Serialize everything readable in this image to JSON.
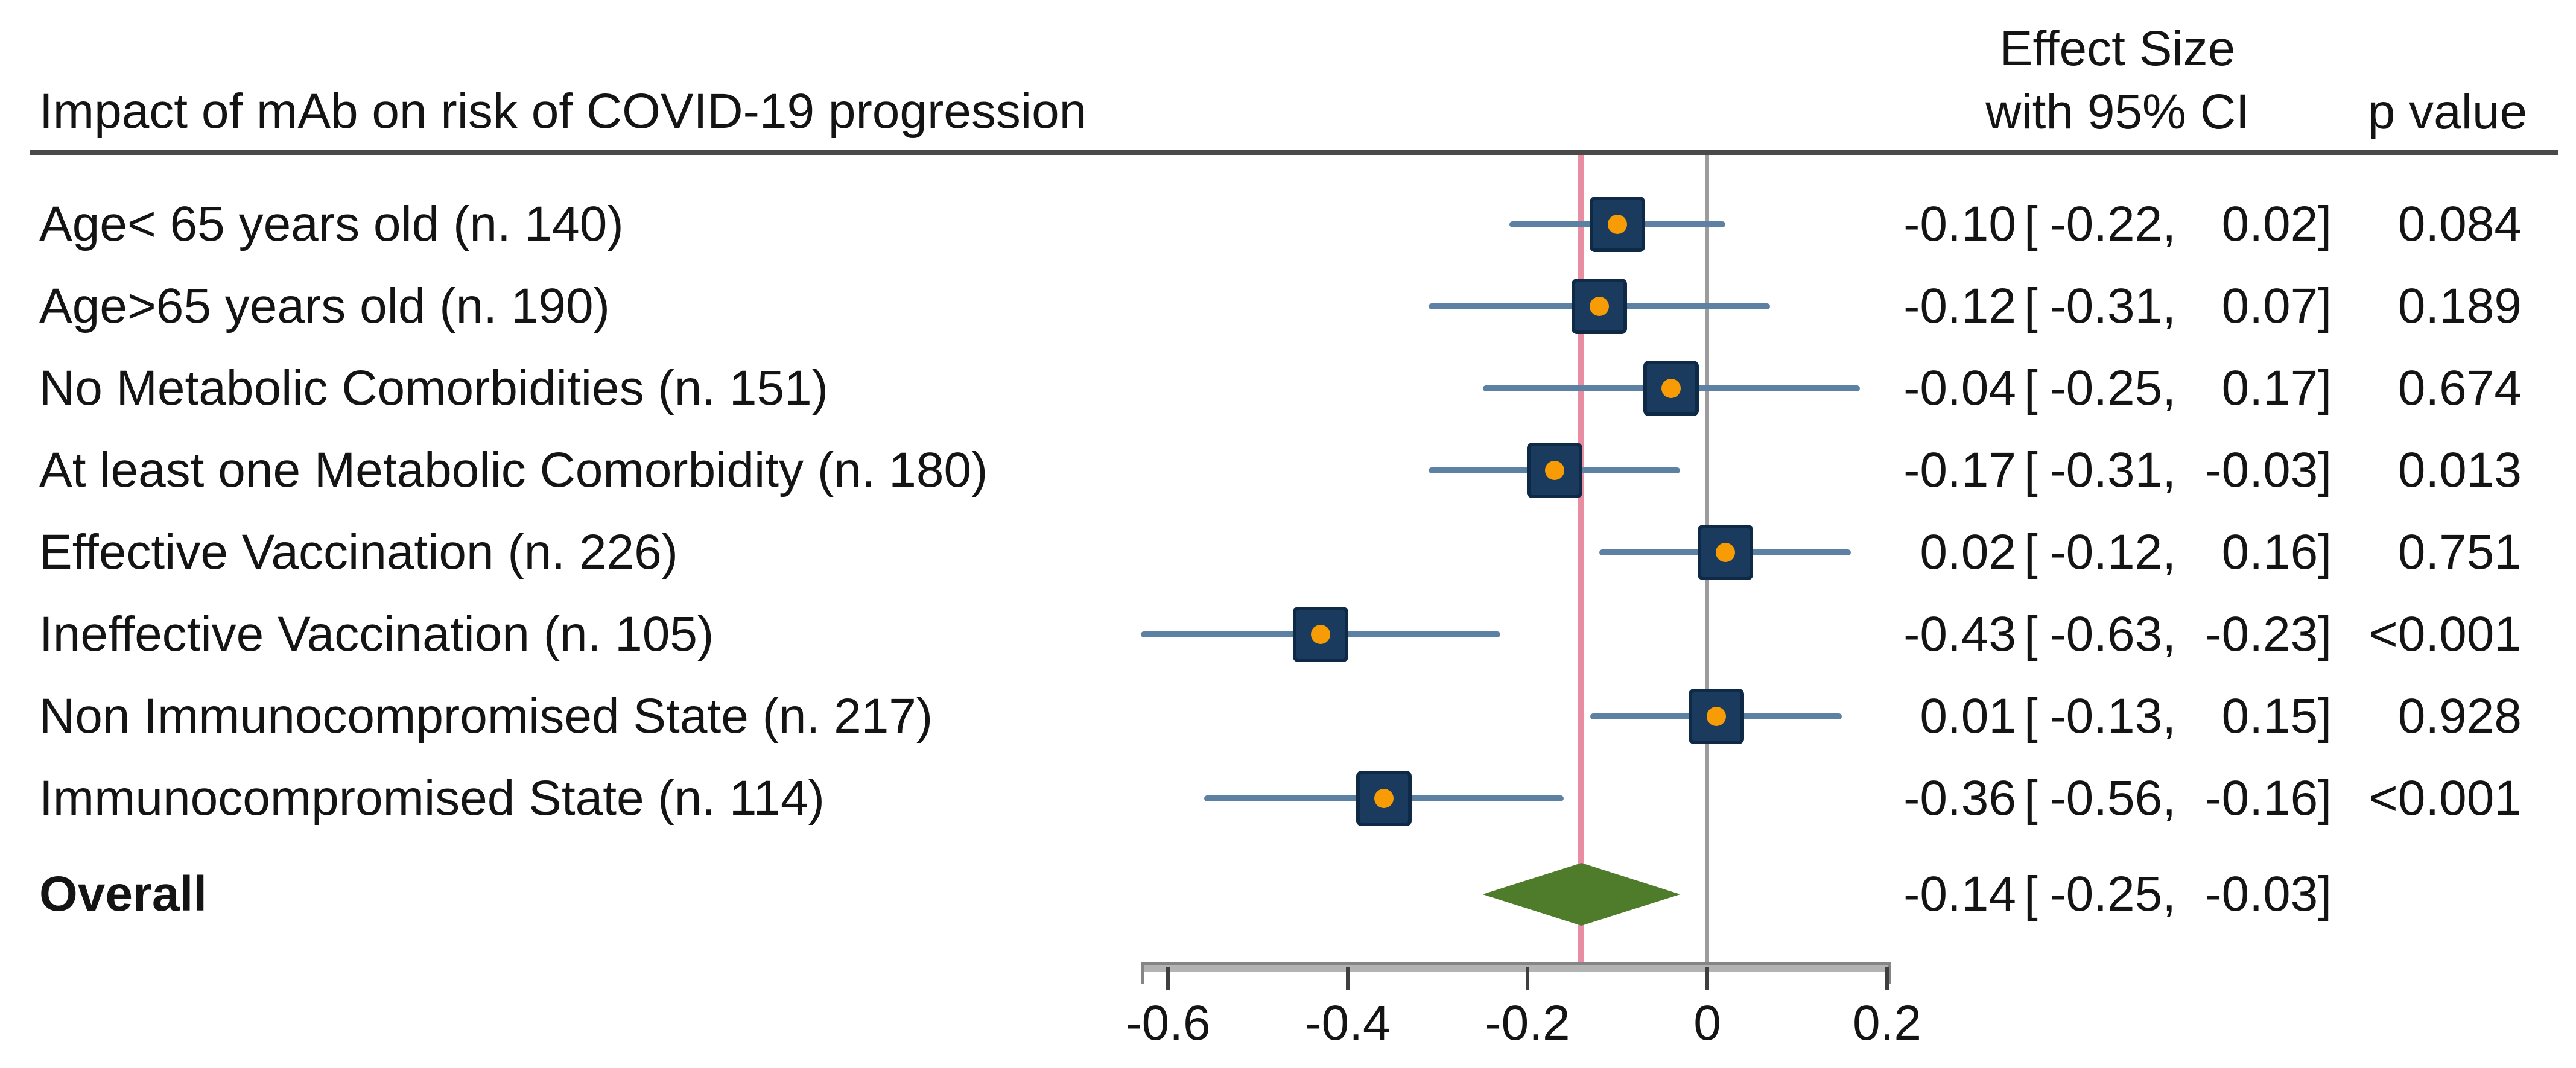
{
  "figure": {
    "title": "Impact of mAb on risk of COVID-19 progression",
    "effect_header_line1": "Effect Size",
    "effect_header_line2": "with 95% CI",
    "p_header": "p value"
  },
  "chart_data": {
    "type": "forest",
    "title": "Impact of mAb on risk of COVID-19 progression",
    "columns": {
      "effect": "Effect Size with 95% CI",
      "p": "p value"
    },
    "x_axis": {
      "ticks": [
        -0.6,
        -0.4,
        -0.2,
        0,
        0.2
      ],
      "tick_labels": [
        "-0.6",
        "-0.4",
        "-0.2",
        "0",
        "0.2"
      ],
      "range_drawn": [
        -0.63,
        0.205
      ],
      "grid": false
    },
    "reference_line_x": 0,
    "overall_estimate_line_x": -0.14,
    "glue": {
      "open": "[",
      "comma": ",",
      "close": "]"
    },
    "rows": [
      {
        "label": "Age< 65 years old (n. 140)",
        "est": -0.1,
        "ci_low": -0.22,
        "ci_high": 0.02,
        "est_text": "-0.10",
        "ci_low_text": "-0.22",
        "ci_high_text": "0.02",
        "p": "0.084"
      },
      {
        "label": "Age>65 years old (n. 190)",
        "est": -0.12,
        "ci_low": -0.31,
        "ci_high": 0.07,
        "est_text": "-0.12",
        "ci_low_text": "-0.31",
        "ci_high_text": "0.07",
        "p": "0.189"
      },
      {
        "label": "No Metabolic Comorbidities (n. 151)",
        "est": -0.04,
        "ci_low": -0.25,
        "ci_high": 0.17,
        "est_text": "-0.04",
        "ci_low_text": "-0.25",
        "ci_high_text": "0.17",
        "p": "0.674"
      },
      {
        "label": "At least one Metabolic Comorbidity (n. 180)",
        "est": -0.17,
        "ci_low": -0.31,
        "ci_high": -0.03,
        "est_text": "-0.17",
        "ci_low_text": "-0.31",
        "ci_high_text": "-0.03",
        "p": "0.013"
      },
      {
        "label": "Effective Vaccination (n. 226)",
        "est": 0.02,
        "ci_low": -0.12,
        "ci_high": 0.16,
        "est_text": "0.02",
        "ci_low_text": "-0.12",
        "ci_high_text": "0.16",
        "p": "0.751"
      },
      {
        "label": "Ineffective Vaccination (n. 105)",
        "est": -0.43,
        "ci_low": -0.63,
        "ci_high": -0.23,
        "est_text": "-0.43",
        "ci_low_text": "-0.63",
        "ci_high_text": "-0.23",
        "p": "<0.001"
      },
      {
        "label": "Non Immunocompromised State (n. 217)",
        "est": 0.01,
        "ci_low": -0.13,
        "ci_high": 0.15,
        "est_text": "0.01",
        "ci_low_text": "-0.13",
        "ci_high_text": "0.15",
        "p": "0.928"
      },
      {
        "label": "Immunocompromised State (n. 114)",
        "est": -0.36,
        "ci_low": -0.56,
        "ci_high": -0.16,
        "est_text": "-0.36",
        "ci_low_text": "-0.56",
        "ci_high_text": "-0.16",
        "p": "<0.001"
      }
    ],
    "overall": {
      "label": "Overall",
      "est": -0.14,
      "ci_low": -0.25,
      "ci_high": -0.03,
      "est_text": "-0.14",
      "ci_low_text": "-0.25",
      "ci_high_text": "-0.03",
      "p": ""
    },
    "colors": {
      "marker_square": "#1a3a5e",
      "marker_square_border": "#0e2a47",
      "marker_dot": "#f79c05",
      "ci_line": "#5d81a3",
      "reference_line": "#9c9c9c",
      "overall_line": "#e98da3",
      "diamond": "#4e7c2b",
      "header_rule": "#4a4a4a",
      "axis_line": "#b3b3b3",
      "tick": "#3f3f3f",
      "text": "#141414"
    }
  }
}
